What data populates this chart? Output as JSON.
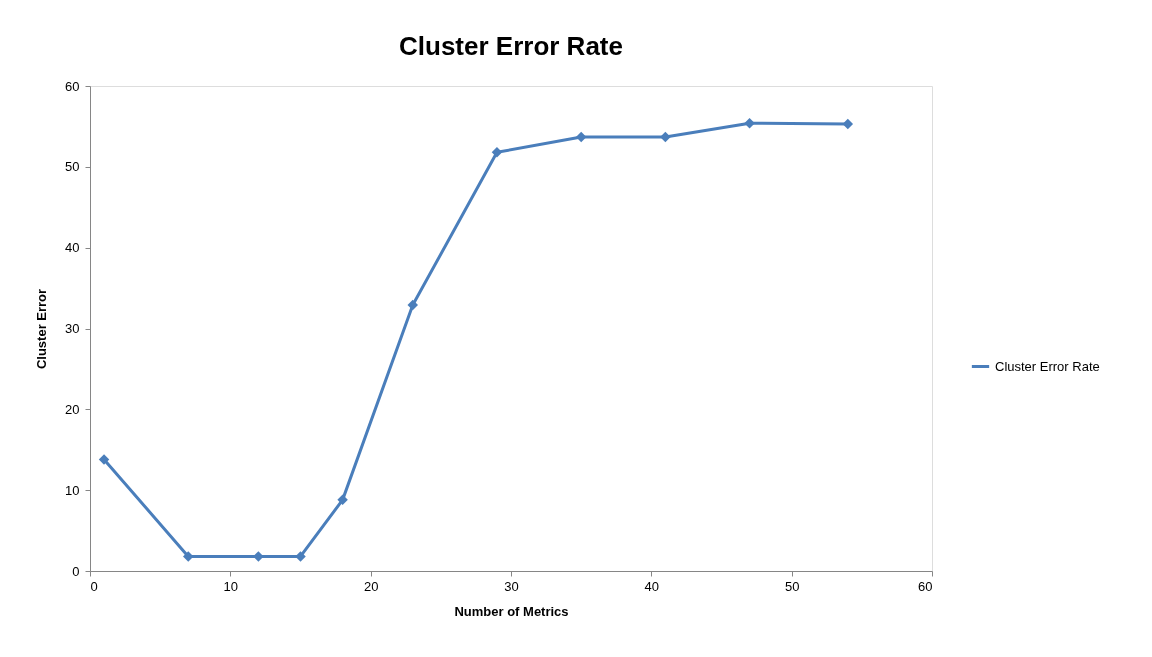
{
  "chart_data": {
    "type": "line",
    "title": "Cluster Error Rate",
    "xlabel": "Number of Metrics",
    "ylabel": "Cluster Error",
    "x": [
      1,
      7,
      12,
      15,
      18,
      23,
      29,
      35,
      41,
      47,
      54
    ],
    "series": [
      {
        "name": "Cluster Error Rate",
        "color": "#4a7ebb",
        "values": [
          13.8,
          1.8,
          1.8,
          1.8,
          8.8,
          32.9,
          51.8,
          53.7,
          53.7,
          55.4,
          55.3
        ]
      }
    ],
    "xlim": [
      0,
      60
    ],
    "xticks": [
      0,
      10,
      20,
      30,
      40,
      50,
      60
    ],
    "ylim": [
      0,
      60
    ],
    "yticks": [
      0,
      10,
      20,
      30,
      40,
      50,
      60
    ],
    "grid": false,
    "legend": "right",
    "marker": "diamond",
    "line_style": "solid"
  }
}
